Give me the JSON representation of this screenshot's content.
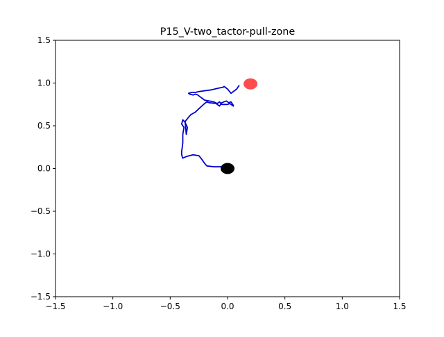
{
  "chart_data": {
    "type": "scatter",
    "title": "P15_V-two_tactor-pull-zone",
    "xlabel": "",
    "ylabel": "",
    "xlim": [
      -1.5,
      1.5
    ],
    "ylim": [
      -1.5,
      1.5
    ],
    "grid": false,
    "x_ticks": [
      {
        "value": -1.5,
        "label": "−1.5"
      },
      {
        "value": -1.0,
        "label": "−1.0"
      },
      {
        "value": -0.5,
        "label": "−0.5"
      },
      {
        "value": 0.0,
        "label": "0.0"
      },
      {
        "value": 0.5,
        "label": "0.5"
      },
      {
        "value": 1.0,
        "label": "1.0"
      },
      {
        "value": 1.5,
        "label": "1.5"
      }
    ],
    "y_ticks": [
      {
        "value": -1.5,
        "label": "−1.5"
      },
      {
        "value": -1.0,
        "label": "−1.0"
      },
      {
        "value": -0.5,
        "label": "−0.5"
      },
      {
        "value": 0.0,
        "label": "0.0"
      },
      {
        "value": 0.5,
        "label": "0.5"
      },
      {
        "value": 1.0,
        "label": "1.0"
      },
      {
        "value": 1.5,
        "label": "1.5"
      }
    ],
    "trajectory": {
      "color": "#0000cc",
      "x": [
        0.0,
        -0.03,
        -0.08,
        -0.12,
        -0.18,
        -0.2,
        -0.22,
        -0.25,
        -0.3,
        -0.36,
        -0.39,
        -0.4,
        -0.4,
        -0.39,
        -0.39,
        -0.38,
        -0.4,
        -0.39,
        -0.37,
        -0.35,
        -0.36,
        -0.37,
        -0.34,
        -0.32,
        -0.28,
        -0.25,
        -0.2,
        -0.18,
        -0.16,
        -0.1,
        -0.07,
        -0.05,
        -0.01,
        0.01,
        0.03,
        0.04,
        0.05,
        0.05,
        0.02,
        0.0,
        -0.05,
        -0.07,
        -0.09,
        -0.12,
        -0.16,
        -0.2,
        -0.22,
        -0.24,
        -0.26,
        -0.28,
        -0.3,
        -0.33,
        -0.34,
        -0.31,
        -0.28,
        -0.25,
        -0.2,
        -0.14,
        -0.08,
        -0.04,
        -0.03,
        0.0,
        0.03,
        0.05,
        0.08,
        0.1
      ],
      "y": [
        0.01,
        0.02,
        0.02,
        0.02,
        0.03,
        0.06,
        0.1,
        0.15,
        0.16,
        0.14,
        0.12,
        0.16,
        0.2,
        0.3,
        0.4,
        0.48,
        0.52,
        0.57,
        0.54,
        0.48,
        0.4,
        0.55,
        0.6,
        0.63,
        0.66,
        0.7,
        0.76,
        0.78,
        0.77,
        0.76,
        0.73,
        0.77,
        0.79,
        0.77,
        0.78,
        0.76,
        0.74,
        0.73,
        0.76,
        0.75,
        0.75,
        0.78,
        0.76,
        0.78,
        0.79,
        0.8,
        0.82,
        0.84,
        0.86,
        0.87,
        0.86,
        0.87,
        0.88,
        0.89,
        0.89,
        0.9,
        0.91,
        0.92,
        0.94,
        0.95,
        0.96,
        0.93,
        0.88,
        0.9,
        0.93,
        0.97
      ]
    },
    "markers": [
      {
        "name": "start",
        "x": 0.0,
        "y": 0.0,
        "color": "#000000",
        "opacity": 1.0
      },
      {
        "name": "target",
        "x": 0.2,
        "y": 0.99,
        "color": "#ff0000",
        "opacity": 0.7
      }
    ]
  }
}
